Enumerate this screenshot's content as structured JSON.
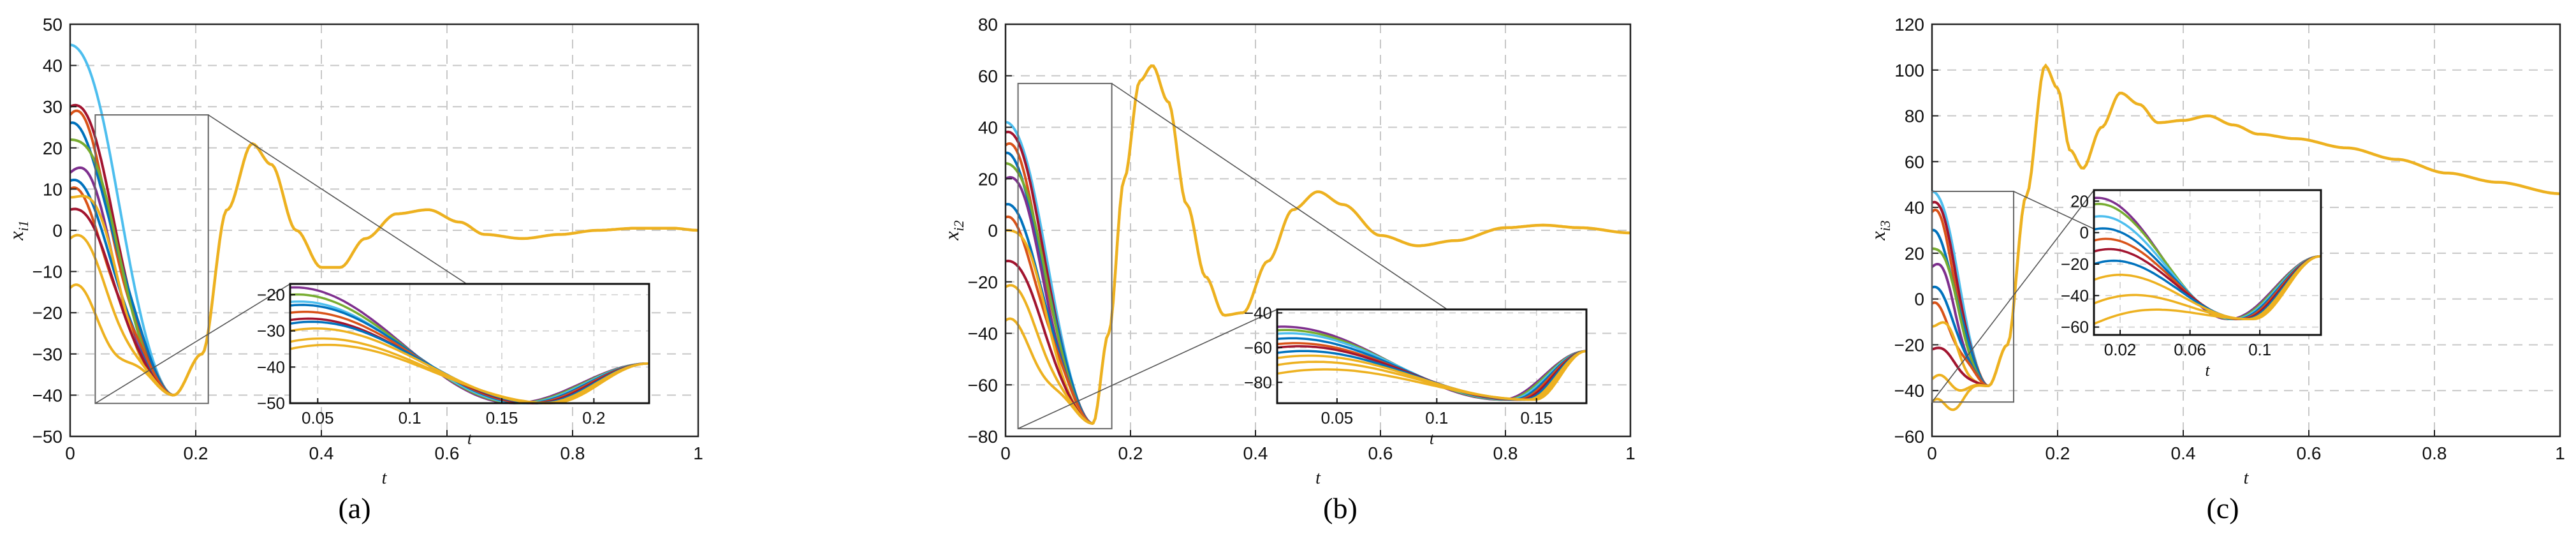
{
  "figure": {
    "captions": [
      "(a)",
      "(b)",
      "(c)"
    ]
  },
  "colors": [
    "#0072BD",
    "#D95319",
    "#EDB120",
    "#7E2F8E",
    "#77AC30",
    "#4DBEEE",
    "#A2142F",
    "#EDB120"
  ],
  "chart_data": [
    {
      "type": "line",
      "panel": "a",
      "xlabel": "t",
      "ylabel": "x_i1",
      "ylabel_main": "x",
      "ylabel_sub": "i1",
      "xlim": [
        0,
        1
      ],
      "ylim": [
        -50,
        50
      ],
      "xticks": [
        0,
        0.2,
        0.4,
        0.6,
        0.8,
        1
      ],
      "xtick_labels": [
        "0",
        "0.2",
        "0.4",
        "0.6",
        "0.8",
        "1"
      ],
      "yticks": [
        -50,
        -40,
        -30,
        -20,
        -10,
        0,
        10,
        20,
        30,
        40,
        50
      ],
      "ytick_labels": [
        "−50",
        "−40",
        "−30",
        "−20",
        "−10",
        "0",
        "10",
        "20",
        "30",
        "40",
        "50"
      ],
      "grid": true,
      "zoom_region": {
        "x": [
          0.04,
          0.22
        ],
        "y": [
          -42,
          28
        ]
      },
      "converge": {
        "t": 0.165,
        "y": -40
      },
      "initial_values": [
        45,
        30,
        28,
        26,
        22,
        14,
        12,
        10,
        8,
        5,
        -2,
        -14
      ],
      "tail": [
        [
          0.165,
          -40
        ],
        [
          0.21,
          -30
        ],
        [
          0.25,
          5
        ],
        [
          0.29,
          21
        ],
        [
          0.32,
          16
        ],
        [
          0.36,
          0
        ],
        [
          0.4,
          -9
        ],
        [
          0.43,
          -9
        ],
        [
          0.47,
          -2
        ],
        [
          0.52,
          4
        ],
        [
          0.57,
          5
        ],
        [
          0.62,
          2
        ],
        [
          0.66,
          -1
        ],
        [
          0.72,
          -2
        ],
        [
          0.78,
          -1
        ],
        [
          0.84,
          0
        ],
        [
          0.9,
          0.5
        ],
        [
          0.96,
          0.5
        ],
        [
          1.0,
          0
        ]
      ],
      "inset": {
        "xlim": [
          0.035,
          0.23
        ],
        "ylim": [
          -50,
          -17
        ],
        "xticks": [
          0.05,
          0.1,
          0.15,
          0.2
        ],
        "xtick_labels": [
          "0.05",
          "0.1",
          "0.15",
          "0.2"
        ],
        "yticks": [
          -50,
          -40,
          -30,
          -20
        ],
        "ytick_labels": [
          "−50",
          "−40",
          "−30",
          "−20"
        ],
        "start": {
          "x": 0.035,
          "values": [
            -18,
            -20,
            -22,
            -23,
            -25,
            -27,
            -28,
            -30,
            -33,
            -35
          ]
        },
        "min": {
          "x": 0.168,
          "y": -50
        },
        "end": {
          "x": 0.23,
          "y": -39
        }
      }
    },
    {
      "type": "line",
      "panel": "b",
      "xlabel": "t",
      "ylabel": "x_i2",
      "ylabel_main": "x",
      "ylabel_sub": "i2",
      "xlim": [
        0,
        1
      ],
      "ylim": [
        -80,
        80
      ],
      "xticks": [
        0,
        0.2,
        0.4,
        0.6,
        0.8,
        1
      ],
      "xtick_labels": [
        "0",
        "0.2",
        "0.4",
        "0.6",
        "0.8",
        "1"
      ],
      "yticks": [
        -80,
        -60,
        -40,
        -20,
        0,
        20,
        40,
        60,
        80
      ],
      "ytick_labels": [
        "−80",
        "−60",
        "−40",
        "−20",
        "0",
        "20",
        "40",
        "60",
        "80"
      ],
      "grid": true,
      "zoom_region": {
        "x": [
          0.02,
          0.17
        ],
        "y": [
          -77,
          57
        ]
      },
      "converge": {
        "t": 0.14,
        "y": -75
      },
      "initial_values": [
        42,
        38,
        33,
        30,
        26,
        20,
        10,
        5,
        0,
        -12,
        -22,
        -35
      ],
      "tail": [
        [
          0.14,
          -75
        ],
        [
          0.165,
          -40
        ],
        [
          0.19,
          20
        ],
        [
          0.215,
          58
        ],
        [
          0.235,
          64
        ],
        [
          0.26,
          50
        ],
        [
          0.29,
          10
        ],
        [
          0.32,
          -18
        ],
        [
          0.35,
          -33
        ],
        [
          0.38,
          -32
        ],
        [
          0.42,
          -12
        ],
        [
          0.46,
          8
        ],
        [
          0.5,
          15
        ],
        [
          0.54,
          10
        ],
        [
          0.6,
          -2
        ],
        [
          0.66,
          -6
        ],
        [
          0.72,
          -4
        ],
        [
          0.8,
          1
        ],
        [
          0.86,
          2
        ],
        [
          0.92,
          1
        ],
        [
          1.0,
          -1
        ]
      ],
      "inset": {
        "xlim": [
          0.02,
          0.175
        ],
        "ylim": [
          -92,
          -38
        ],
        "xticks": [
          0.05,
          0.1,
          0.15
        ],
        "xtick_labels": [
          "0.05",
          "0.1",
          "0.15"
        ],
        "yticks": [
          -80,
          -60,
          -40
        ],
        "ytick_labels": [
          "−80",
          "−60",
          "−40"
        ],
        "start": {
          "x": 0.02,
          "values": [
            -48,
            -50,
            -52,
            -55,
            -58,
            -60,
            -63,
            -66,
            -70,
            -75
          ]
        },
        "min": {
          "x": 0.142,
          "y": -90
        },
        "end": {
          "x": 0.175,
          "y": -62
        }
      }
    },
    {
      "type": "line",
      "panel": "c",
      "xlabel": "t",
      "ylabel": "x_i3",
      "ylabel_main": "x",
      "ylabel_sub": "i3",
      "xlim": [
        0,
        1
      ],
      "ylim": [
        -60,
        120
      ],
      "xticks": [
        0,
        0.2,
        0.4,
        0.6,
        0.8,
        1
      ],
      "xtick_labels": [
        "0",
        "0.2",
        "0.4",
        "0.6",
        "0.8",
        "1"
      ],
      "yticks": [
        -60,
        -40,
        -20,
        0,
        20,
        40,
        60,
        80,
        100,
        120
      ],
      "ytick_labels": [
        "−60",
        "−40",
        "−20",
        "0",
        "20",
        "40",
        "60",
        "80",
        "100",
        "120"
      ],
      "grid": true,
      "zoom_region": {
        "x": [
          0.0,
          0.13
        ],
        "y": [
          -45,
          47
        ]
      },
      "converge": {
        "t": 0.09,
        "y": -38
      },
      "initial_values": [
        47,
        42,
        38,
        30,
        22,
        14,
        5,
        -2,
        -12,
        -22,
        -35,
        -45
      ],
      "tail": [
        [
          0.09,
          -38
        ],
        [
          0.12,
          -20
        ],
        [
          0.15,
          45
        ],
        [
          0.18,
          102
        ],
        [
          0.2,
          92
        ],
        [
          0.22,
          65
        ],
        [
          0.24,
          57
        ],
        [
          0.27,
          75
        ],
        [
          0.3,
          90
        ],
        [
          0.33,
          85
        ],
        [
          0.36,
          77
        ],
        [
          0.4,
          78
        ],
        [
          0.44,
          80
        ],
        [
          0.48,
          76
        ],
        [
          0.52,
          72
        ],
        [
          0.58,
          70
        ],
        [
          0.66,
          66
        ],
        [
          0.74,
          61
        ],
        [
          0.82,
          55
        ],
        [
          0.9,
          51
        ],
        [
          1.0,
          46
        ]
      ],
      "inset": {
        "xlim": [
          0.005,
          0.135
        ],
        "ylim": [
          -65,
          27
        ],
        "xticks": [
          0.02,
          0.06,
          0.1
        ],
        "xtick_labels": [
          "0.02",
          "0.06",
          "0.1"
        ],
        "yticks": [
          -60,
          -40,
          -20,
          0,
          20
        ],
        "ytick_labels": [
          "−60",
          "−40",
          "−20",
          "0",
          "20"
        ],
        "start": {
          "x": 0.005,
          "values": [
            22,
            18,
            10,
            2,
            -5,
            -12,
            -20,
            -30,
            -45,
            -58
          ]
        },
        "min": {
          "x": 0.09,
          "y": -55
        },
        "end": {
          "x": 0.135,
          "y": -15
        }
      }
    }
  ]
}
